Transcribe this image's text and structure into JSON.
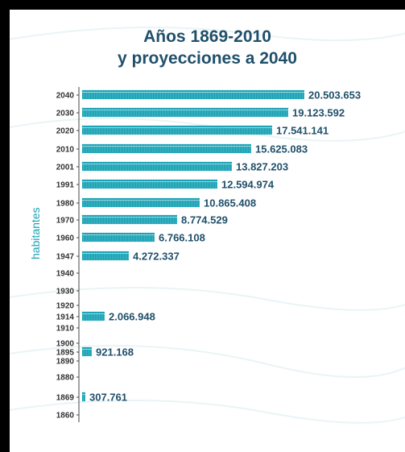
{
  "title_line1": "Años 1869-2010",
  "title_line2": "y proyecciones a 2040",
  "colors": {
    "icon": "#13a0b3",
    "text": "#1f4f6a",
    "axis": "#444444",
    "label_axis": "#1aa2b5"
  },
  "chart_data": {
    "type": "bar",
    "title": "Años 1869-2010 y proyecciones a 2040",
    "xlabel": "",
    "ylabel": "habitantes",
    "axis_ticks": [
      "2040",
      "2030",
      "2020",
      "2010",
      "2001",
      "1991",
      "1980",
      "1970",
      "1960",
      "1947",
      "1940",
      "1930",
      "1920",
      "1914",
      "1910",
      "1900",
      "1895",
      "1890",
      "1880",
      "1869",
      "1860"
    ],
    "series": [
      {
        "year": "2040",
        "value": 20503653,
        "label": "20.503.653"
      },
      {
        "year": "2030",
        "value": 19123592,
        "label": "19.123.592"
      },
      {
        "year": "2020",
        "value": 17541141,
        "label": "17.541.141"
      },
      {
        "year": "2010",
        "value": 15625083,
        "label": "15.625.083"
      },
      {
        "year": "2001",
        "value": 13827203,
        "label": "13.827.203"
      },
      {
        "year": "1991",
        "value": 12594974,
        "label": "12.594.974"
      },
      {
        "year": "1980",
        "value": 10865408,
        "label": "10.865.408"
      },
      {
        "year": "1970",
        "value": 8774529,
        "label": "8.774.529"
      },
      {
        "year": "1960",
        "value": 6766108,
        "label": "6.766.108"
      },
      {
        "year": "1947",
        "value": 4272337,
        "label": "4.272.337"
      },
      {
        "year": "1914",
        "value": 2066948,
        "label": "2.066.948"
      },
      {
        "year": "1895",
        "value": 921168,
        "label": "921.168"
      },
      {
        "year": "1869",
        "value": 307761,
        "label": "307.761"
      }
    ],
    "units_per_icon": 125000
  }
}
